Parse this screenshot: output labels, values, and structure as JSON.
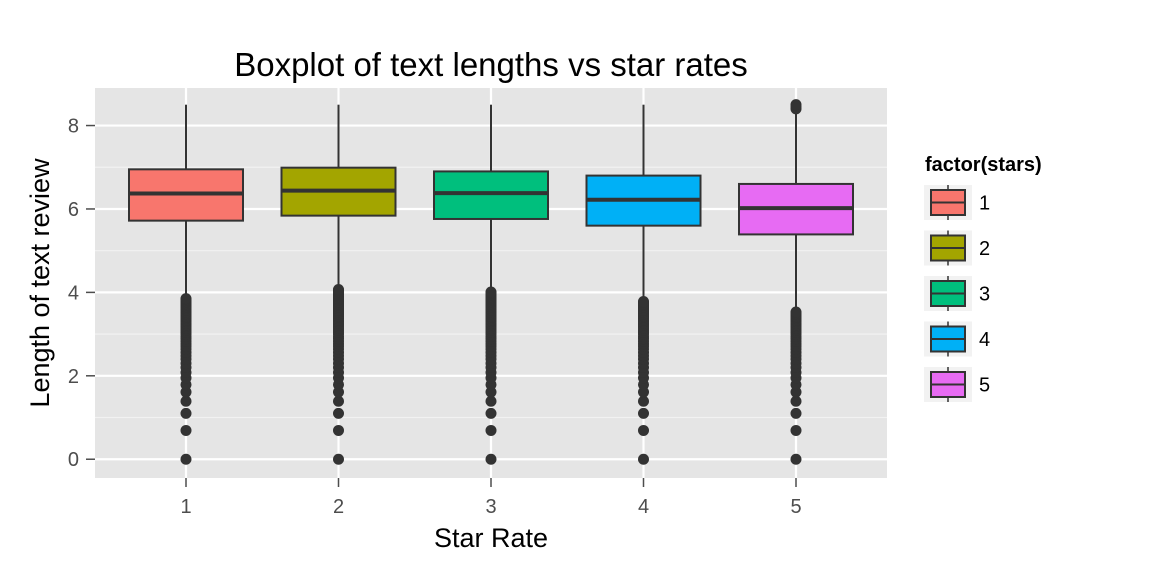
{
  "chart_data": {
    "type": "boxplot",
    "title": "Boxplot of text lengths vs star rates",
    "xlabel": "Star Rate",
    "ylabel": "Length of text review",
    "categories": [
      "1",
      "2",
      "3",
      "4",
      "5"
    ],
    "yticks": [
      "0",
      "2",
      "4",
      "6",
      "8"
    ],
    "ylim": [
      -0.45,
      8.9
    ],
    "grid": true,
    "legend": {
      "title": "factor(stars)",
      "position": "right",
      "labels": [
        "1",
        "2",
        "3",
        "4",
        "5"
      ]
    },
    "series": [
      {
        "category": "1",
        "fill": "#F8766D",
        "whisker_low": 3.9,
        "q1": 5.72,
        "median": 6.37,
        "q3": 6.95,
        "whisker_high": 8.5,
        "outliers": [
          0,
          0.69,
          1.1,
          1.39,
          1.61,
          1.79,
          1.95,
          2.08,
          2.2,
          2.3,
          2.4,
          2.48,
          2.56,
          2.64,
          2.71,
          2.77,
          2.83,
          2.89,
          2.94,
          3.0,
          3.04,
          3.09,
          3.14,
          3.18,
          3.22,
          3.26,
          3.3,
          3.33,
          3.37,
          3.4,
          3.43,
          3.47,
          3.5,
          3.53,
          3.56,
          3.58,
          3.61,
          3.64,
          3.66,
          3.69,
          3.71,
          3.74,
          3.76,
          3.78,
          3.81,
          3.83,
          3.85
        ]
      },
      {
        "category": "2",
        "fill": "#A3A500",
        "whisker_low": 4.1,
        "q1": 5.84,
        "median": 6.44,
        "q3": 6.99,
        "whisker_high": 8.5,
        "outliers": [
          0,
          0.69,
          1.1,
          1.39,
          1.61,
          1.79,
          1.95,
          2.08,
          2.2,
          2.3,
          2.4,
          2.48,
          2.56,
          2.64,
          2.71,
          2.77,
          2.83,
          2.89,
          2.94,
          3.0,
          3.04,
          3.09,
          3.14,
          3.18,
          3.22,
          3.26,
          3.3,
          3.33,
          3.37,
          3.4,
          3.43,
          3.47,
          3.5,
          3.53,
          3.56,
          3.58,
          3.61,
          3.64,
          3.66,
          3.69,
          3.71,
          3.74,
          3.76,
          3.78,
          3.81,
          3.83,
          3.85,
          3.87,
          3.89,
          3.91,
          3.93,
          3.95,
          3.97,
          3.99,
          4.01,
          4.03,
          4.05,
          4.07
        ]
      },
      {
        "category": "3",
        "fill": "#00BF7D",
        "whisker_low": 4.05,
        "q1": 5.76,
        "median": 6.38,
        "q3": 6.9,
        "whisker_high": 8.5,
        "outliers": [
          0,
          0.69,
          1.1,
          1.39,
          1.61,
          1.79,
          1.95,
          2.08,
          2.2,
          2.3,
          2.4,
          2.48,
          2.56,
          2.64,
          2.71,
          2.77,
          2.83,
          2.89,
          2.94,
          3.0,
          3.04,
          3.09,
          3.14,
          3.18,
          3.22,
          3.26,
          3.3,
          3.33,
          3.37,
          3.4,
          3.43,
          3.47,
          3.5,
          3.53,
          3.56,
          3.58,
          3.61,
          3.64,
          3.66,
          3.69,
          3.71,
          3.74,
          3.76,
          3.78,
          3.81,
          3.83,
          3.85,
          3.87,
          3.89,
          3.91,
          3.93,
          3.95,
          3.97,
          3.99,
          4.01
        ]
      },
      {
        "category": "4",
        "fill": "#00B0F6",
        "whisker_low": 3.85,
        "q1": 5.6,
        "median": 6.22,
        "q3": 6.8,
        "whisker_high": 8.5,
        "outliers": [
          0,
          0.69,
          1.1,
          1.39,
          1.61,
          1.79,
          1.95,
          2.08,
          2.2,
          2.3,
          2.4,
          2.48,
          2.56,
          2.64,
          2.71,
          2.77,
          2.83,
          2.89,
          2.94,
          3.0,
          3.04,
          3.09,
          3.14,
          3.18,
          3.22,
          3.26,
          3.3,
          3.33,
          3.37,
          3.4,
          3.43,
          3.47,
          3.5,
          3.53,
          3.56,
          3.58,
          3.61,
          3.64,
          3.66,
          3.69,
          3.71,
          3.74,
          3.76,
          3.78
        ]
      },
      {
        "category": "5",
        "fill": "#E76BF3",
        "whisker_low": 3.6,
        "q1": 5.39,
        "median": 6.02,
        "q3": 6.6,
        "whisker_high": 8.35,
        "outliers": [
          0,
          0.69,
          1.1,
          1.39,
          1.61,
          1.79,
          1.95,
          2.08,
          2.2,
          2.3,
          2.4,
          2.48,
          2.56,
          2.64,
          2.71,
          2.77,
          2.83,
          2.89,
          2.94,
          3.0,
          3.04,
          3.09,
          3.14,
          3.18,
          3.22,
          3.26,
          3.3,
          3.33,
          3.37,
          3.4,
          3.43,
          3.47,
          3.5,
          3.53,
          8.4,
          8.45,
          8.5
        ]
      }
    ]
  }
}
